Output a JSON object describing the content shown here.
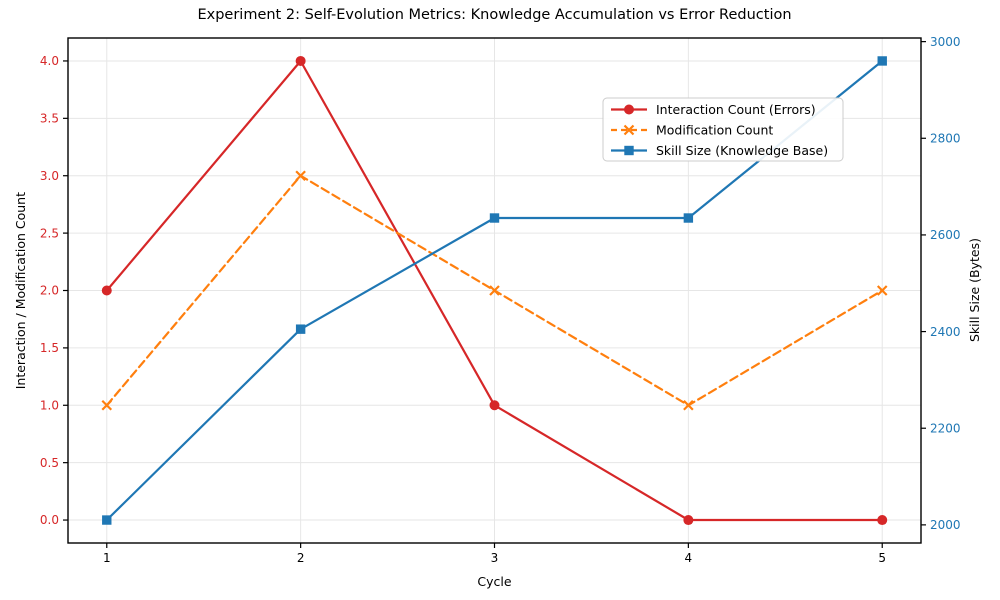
{
  "chart_data": {
    "type": "line",
    "title": "Experiment 2: Self-Evolution Metrics: Knowledge Accumulation vs Error Reduction",
    "xlabel": "Cycle",
    "ylabel_left": "Interaction / Modification Count",
    "ylabel_right": "Skill Size (Bytes)",
    "x": [
      1,
      2,
      3,
      4,
      5
    ],
    "series": [
      {
        "key": "interaction-count",
        "name": "Interaction Count (Errors)",
        "axis": "left",
        "color": "#d62728",
        "linestyle": "solid",
        "marker": "circle",
        "values": [
          2,
          4,
          1,
          0,
          0
        ]
      },
      {
        "key": "modification-count",
        "name": "Modification Count",
        "axis": "left",
        "color": "#ff7f0e",
        "linestyle": "dashed",
        "marker": "x",
        "values": [
          1,
          3,
          2,
          1,
          2
        ]
      },
      {
        "key": "skill-size",
        "name": "Skill Size (Knowledge Base)",
        "axis": "right",
        "color": "#1f77b4",
        "linestyle": "solid",
        "marker": "square",
        "values": [
          2010,
          2405,
          2635,
          2635,
          2960
        ]
      }
    ],
    "axes": {
      "x_range": [
        0.8,
        5.2
      ],
      "x_ticks": [
        1,
        2,
        3,
        4,
        5
      ],
      "y_left_range": [
        -0.2,
        4.2
      ],
      "y_left_tick_values": [
        0,
        0.5,
        1,
        1.5,
        2,
        2.5,
        3,
        3.5,
        4
      ],
      "y_left_tick_labels": [
        "0.0",
        "0.5",
        "1.0",
        "1.5",
        "2.0",
        "2.5",
        "3.0",
        "3.5",
        "4.0"
      ],
      "y_left_color": "#d62728",
      "y_right_range": [
        1962.5,
        3007.5
      ],
      "y_right_ticks": [
        2000,
        2200,
        2400,
        2600,
        2800,
        3000
      ],
      "y_right_color": "#1f77b4",
      "grid": true,
      "grid_color": "#e6e6e6",
      "frame_color": "#000000",
      "tick_label_color": "#000000"
    },
    "legend": {
      "position": "upper right inside",
      "background": "#ffffff",
      "border_color": "#cccccc"
    },
    "background": "#ffffff"
  }
}
